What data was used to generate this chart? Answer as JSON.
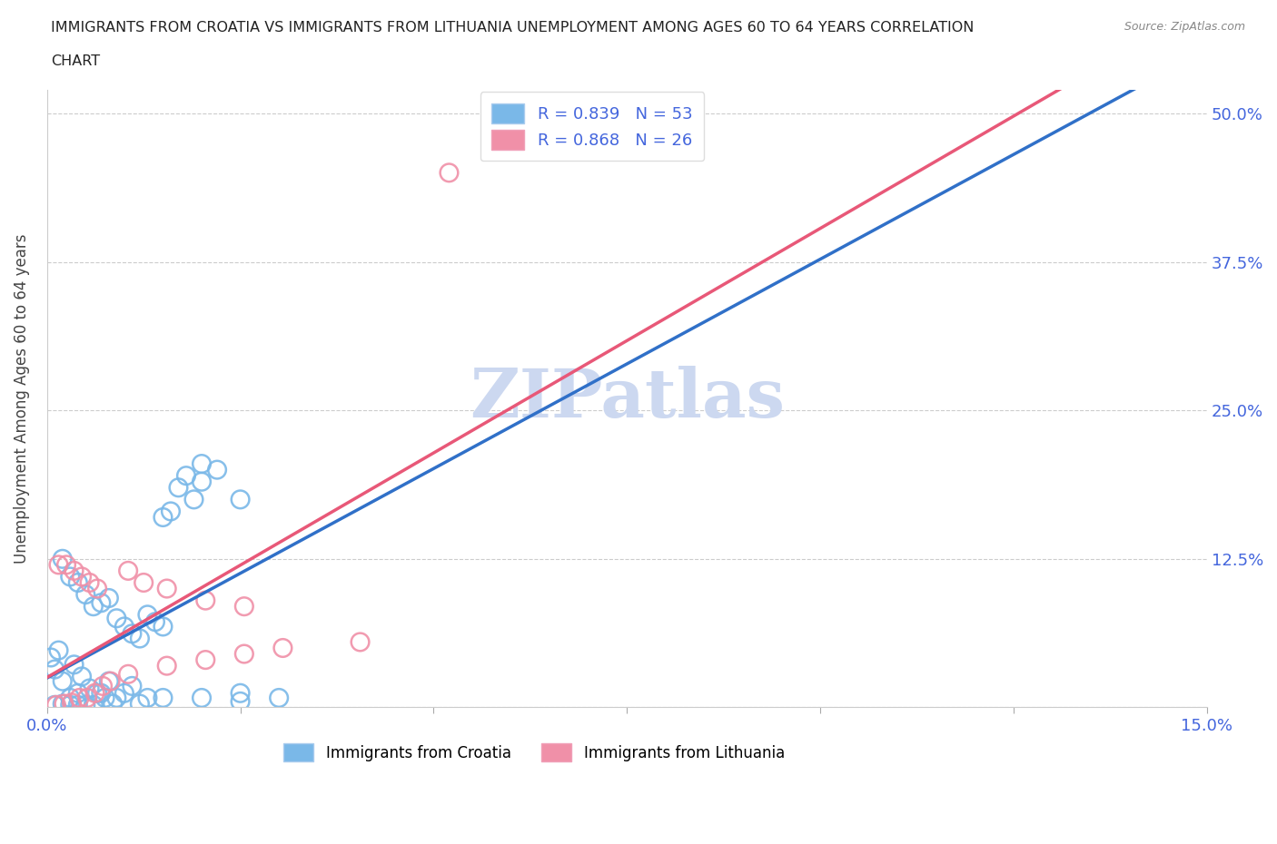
{
  "title_line1": "IMMIGRANTS FROM CROATIA VS IMMIGRANTS FROM LITHUANIA UNEMPLOYMENT AMONG AGES 60 TO 64 YEARS CORRELATION",
  "title_line2": "CHART",
  "source": "Source: ZipAtlas.com",
  "ylabel": "Unemployment Among Ages 60 to 64 years",
  "croatia_color": "#7ab8e8",
  "lithuania_color": "#f090a8",
  "croatia_line_color": "#3070c8",
  "lithuania_line_color": "#e85878",
  "watermark": "ZIPatlas",
  "watermark_color": "#ccd8f0",
  "croatia_scatter": [
    [
      0.2,
      12.5
    ],
    [
      0.3,
      11.0
    ],
    [
      0.4,
      10.5
    ],
    [
      0.5,
      9.5
    ],
    [
      0.6,
      8.5
    ],
    [
      0.7,
      8.8
    ],
    [
      0.8,
      9.2
    ],
    [
      0.9,
      7.5
    ],
    [
      1.0,
      6.8
    ],
    [
      1.1,
      6.2
    ],
    [
      1.2,
      5.8
    ],
    [
      1.3,
      7.8
    ],
    [
      1.4,
      7.2
    ],
    [
      1.5,
      6.8
    ],
    [
      1.6,
      16.5
    ],
    [
      1.7,
      18.5
    ],
    [
      1.8,
      19.5
    ],
    [
      1.9,
      17.5
    ],
    [
      2.0,
      20.5
    ],
    [
      2.2,
      20.0
    ],
    [
      2.5,
      17.5
    ],
    [
      0.3,
      0.8
    ],
    [
      0.4,
      1.2
    ],
    [
      0.2,
      2.2
    ],
    [
      0.1,
      3.2
    ],
    [
      0.05,
      4.2
    ],
    [
      0.15,
      4.8
    ],
    [
      0.35,
      3.6
    ],
    [
      0.45,
      2.6
    ],
    [
      0.55,
      1.6
    ],
    [
      0.65,
      1.2
    ],
    [
      0.75,
      0.8
    ],
    [
      0.85,
      0.3
    ],
    [
      0.1,
      0.2
    ],
    [
      0.2,
      0.3
    ],
    [
      0.3,
      0.2
    ],
    [
      0.4,
      0.2
    ],
    [
      0.5,
      0.2
    ],
    [
      0.9,
      0.8
    ],
    [
      1.0,
      1.2
    ],
    [
      1.1,
      1.8
    ],
    [
      1.2,
      0.3
    ],
    [
      1.3,
      0.8
    ],
    [
      0.6,
      0.2
    ],
    [
      0.7,
      1.2
    ],
    [
      0.8,
      2.2
    ],
    [
      1.5,
      16.0
    ],
    [
      2.0,
      19.0
    ],
    [
      2.5,
      0.5
    ],
    [
      3.0,
      0.8
    ],
    [
      2.5,
      1.2
    ],
    [
      2.0,
      0.8
    ],
    [
      1.5,
      0.8
    ]
  ],
  "lithuania_scatter": [
    [
      0.15,
      12.0
    ],
    [
      0.25,
      12.0
    ],
    [
      0.35,
      11.5
    ],
    [
      0.45,
      11.0
    ],
    [
      0.55,
      10.5
    ],
    [
      0.65,
      10.0
    ],
    [
      1.05,
      11.5
    ],
    [
      1.25,
      10.5
    ],
    [
      1.55,
      10.0
    ],
    [
      2.05,
      9.0
    ],
    [
      2.55,
      8.5
    ],
    [
      5.2,
      45.0
    ],
    [
      0.12,
      0.2
    ],
    [
      0.22,
      0.3
    ],
    [
      0.32,
      0.4
    ],
    [
      0.42,
      0.8
    ],
    [
      0.52,
      0.8
    ],
    [
      0.62,
      1.2
    ],
    [
      0.72,
      1.8
    ],
    [
      0.82,
      2.2
    ],
    [
      1.05,
      2.8
    ],
    [
      1.55,
      3.5
    ],
    [
      2.05,
      4.0
    ],
    [
      2.55,
      4.5
    ],
    [
      3.05,
      5.0
    ],
    [
      4.05,
      5.5
    ]
  ],
  "xlim_pct": [
    0.0,
    15.0
  ],
  "ylim_pct": [
    0.0,
    52.0
  ],
  "ytick_positions": [
    0,
    12.5,
    25.0,
    37.5,
    50.0
  ],
  "ytick_labels": [
    "",
    "12.5%",
    "25.0%",
    "37.5%",
    "50.0%"
  ],
  "xtick_positions": [
    0,
    2.5,
    5.0,
    7.5,
    10.0,
    12.5,
    15.0
  ],
  "xtick_labels": [
    "0.0%",
    "",
    "",
    "",
    "",
    "",
    "15.0%"
  ],
  "croatia_R": 0.839,
  "croatia_N": 53,
  "lithuania_R": 0.868,
  "lithuania_N": 26,
  "legend_color": "#4466dd",
  "axis_tick_color": "#4466dd",
  "grid_color": "#cccccc",
  "title_color": "#222222",
  "source_color": "#888888",
  "ylabel_color": "#444444"
}
